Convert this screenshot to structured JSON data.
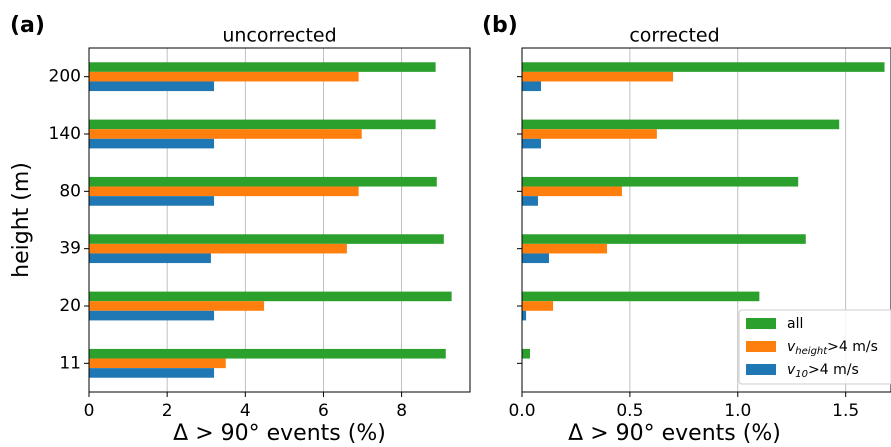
{
  "chart_data": [
    {
      "type": "barh",
      "panel_label": "(a)",
      "title": "uncorrected",
      "xlabel": "Δ > 90° events (%)",
      "ylabel": "height (m)",
      "categories": [
        "11",
        "20",
        "39",
        "80",
        "140",
        "200"
      ],
      "series": [
        {
          "color": "#2ca02c",
          "values": [
            9.13,
            9.28,
            9.08,
            8.9,
            8.87,
            8.87
          ]
        },
        {
          "color": "#ff7f0e",
          "values": [
            3.5,
            4.48,
            6.6,
            6.9,
            6.98,
            6.9
          ]
        },
        {
          "color": "#1f77b4",
          "values": [
            3.2,
            3.2,
            3.12,
            3.2,
            3.2,
            3.2
          ]
        }
      ],
      "xlim": [
        0,
        9.75
      ],
      "xticks": [
        0,
        2,
        4,
        6,
        8
      ],
      "grid": true
    },
    {
      "type": "barh",
      "panel_label": "(b)",
      "title": "corrected",
      "xlabel": "Δ > 90° events (%)",
      "categories": [
        null,
        null,
        null,
        null,
        null,
        null
      ],
      "series": [
        {
          "name": "all",
          "color": "#2ca02c",
          "values": [
            0.037,
            1.1,
            1.315,
            1.28,
            1.47,
            1.68
          ]
        },
        {
          "name": "v_height>4 m/s",
          "color": "#ff7f0e",
          "values": [
            0,
            0.144,
            0.394,
            0.463,
            0.625,
            0.7
          ]
        },
        {
          "name": "v_10>4 m/s",
          "color": "#1f77b4",
          "values": [
            0,
            0.019,
            0.125,
            0.074,
            0.088,
            0.088
          ]
        }
      ],
      "xlim": [
        0,
        1.71
      ],
      "xticks": [
        {
          "value": 0,
          "label": "0.0"
        },
        0.5,
        {
          "value": 1,
          "label": "1.0"
        },
        1.5
      ],
      "grid": true,
      "legend": "lower right"
    }
  ]
}
